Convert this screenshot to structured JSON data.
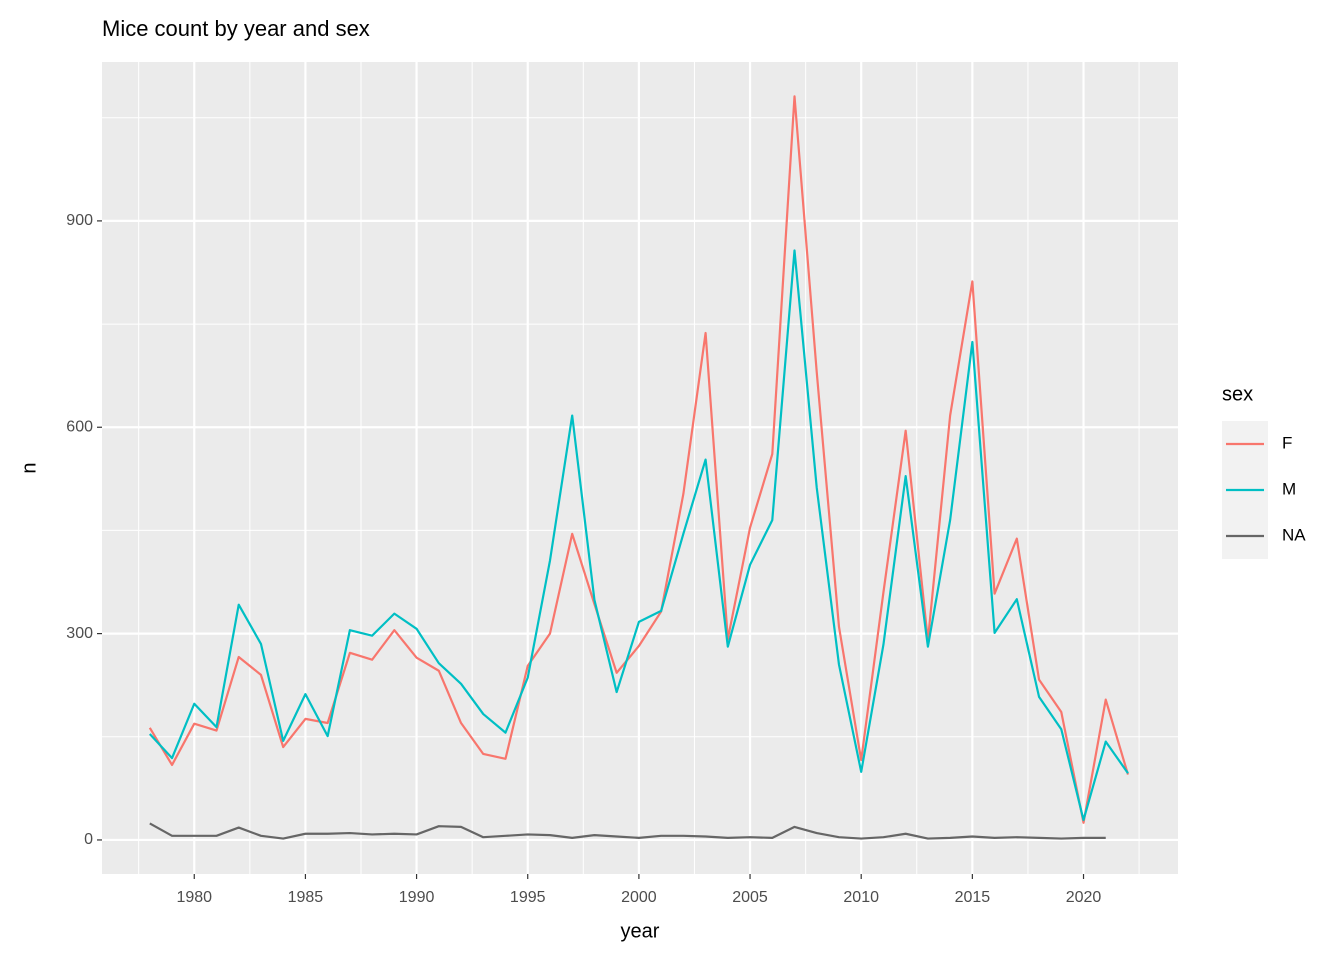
{
  "chart_data": {
    "type": "line",
    "title": "Mice count by year and sex",
    "x_label": "year",
    "y_label": "n",
    "legend_title": "sex",
    "legend_position": "right",
    "x": [
      1978,
      1979,
      1980,
      1981,
      1982,
      1983,
      1984,
      1985,
      1986,
      1987,
      1988,
      1989,
      1990,
      1991,
      1992,
      1993,
      1994,
      1995,
      1996,
      1997,
      1998,
      1999,
      2000,
      2001,
      2002,
      2003,
      2004,
      2005,
      2006,
      2007,
      2008,
      2009,
      2010,
      2011,
      2012,
      2013,
      2014,
      2015,
      2016,
      2017,
      2018,
      2019,
      2020,
      2021,
      2022
    ],
    "series": [
      {
        "name": "F",
        "color": "#F8766D",
        "values": [
          163,
          109,
          169,
          159,
          266,
          240,
          135,
          176,
          170,
          272,
          262,
          305,
          265,
          246,
          170,
          125,
          118,
          253,
          300,
          445,
          343,
          243,
          282,
          332,
          503,
          737,
          292,
          454,
          561,
          1081,
          680,
          310,
          116,
          360,
          595,
          290,
          617,
          812,
          358,
          438,
          233,
          186,
          25,
          204,
          95
        ]
      },
      {
        "name": "M",
        "color": "#00BFC4",
        "values": [
          154,
          119,
          198,
          164,
          342,
          285,
          144,
          212,
          151,
          305,
          297,
          329,
          307,
          257,
          227,
          183,
          156,
          236,
          406,
          617,
          349,
          215,
          317,
          333,
          445,
          553,
          281,
          400,
          465,
          857,
          512,
          255,
          99,
          284,
          529,
          281,
          465,
          724,
          301,
          350,
          208,
          161,
          29,
          143,
          97
        ]
      },
      {
        "name": "NA",
        "color": "#666666",
        "values": [
          24,
          6,
          6,
          6,
          18,
          6,
          2,
          9,
          9,
          10,
          8,
          9,
          8,
          20,
          19,
          4,
          6,
          8,
          7,
          3,
          7,
          5,
          3,
          6,
          6,
          5,
          3,
          4,
          3,
          19,
          10,
          4,
          2,
          4,
          9,
          2,
          3,
          5,
          3,
          4,
          3,
          2,
          3,
          3,
          null
        ]
      }
    ],
    "xlim": [
      1975.85,
      2024.25
    ],
    "ylim": [
      -49.5,
      1131
    ],
    "xticks": [
      1980,
      1985,
      1990,
      1995,
      2000,
      2005,
      2010,
      2015,
      2020
    ],
    "yticks": [
      0,
      300,
      600,
      900
    ],
    "xminor": [
      1977.5,
      1982.5,
      1987.5,
      1992.5,
      1997.5,
      2002.5,
      2007.5,
      2012.5,
      2017.5,
      2022.5
    ],
    "yminor": [
      150,
      450,
      750,
      1050
    ],
    "grid": true
  }
}
